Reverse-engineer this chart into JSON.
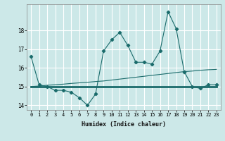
{
  "title": "",
  "xlabel": "Humidex (Indice chaleur)",
  "ylabel": "",
  "bg_color": "#cce8e8",
  "line_color": "#1a6b6b",
  "grid_color": "#ffffff",
  "x": [
    0,
    1,
    2,
    3,
    4,
    5,
    6,
    7,
    8,
    9,
    10,
    11,
    12,
    13,
    14,
    15,
    16,
    17,
    18,
    19,
    20,
    21,
    22,
    23
  ],
  "series1": [
    16.6,
    15.1,
    15.0,
    14.8,
    14.8,
    14.7,
    14.4,
    14.0,
    14.6,
    16.9,
    17.5,
    17.9,
    17.2,
    16.3,
    16.3,
    16.2,
    16.9,
    19.0,
    18.1,
    15.8,
    null,
    null,
    null,
    null
  ],
  "series2": [
    null,
    null,
    null,
    null,
    null,
    null,
    null,
    null,
    null,
    null,
    null,
    null,
    null,
    null,
    null,
    null,
    null,
    null,
    null,
    15.8,
    15.0,
    14.9,
    15.1,
    15.1
  ],
  "series3": [
    15.0,
    15.0,
    15.0,
    15.0,
    15.0,
    15.0,
    15.0,
    15.0,
    15.0,
    15.0,
    15.0,
    15.0,
    15.0,
    15.0,
    15.0,
    15.0,
    15.0,
    15.0,
    15.0,
    15.0,
    15.0,
    15.0,
    15.0,
    15.0
  ],
  "series4": [
    15.0,
    15.03,
    15.07,
    15.1,
    15.13,
    15.17,
    15.2,
    15.23,
    15.27,
    15.3,
    15.35,
    15.4,
    15.45,
    15.5,
    15.55,
    15.6,
    15.65,
    15.7,
    15.75,
    15.8,
    15.83,
    15.87,
    15.9,
    15.92
  ],
  "ylim": [
    13.75,
    19.4
  ],
  "yticks": [
    14,
    15,
    16,
    17,
    18
  ],
  "xticks": [
    0,
    1,
    2,
    3,
    4,
    5,
    6,
    7,
    8,
    9,
    10,
    11,
    12,
    13,
    14,
    15,
    16,
    17,
    18,
    19,
    20,
    21,
    22,
    23
  ]
}
